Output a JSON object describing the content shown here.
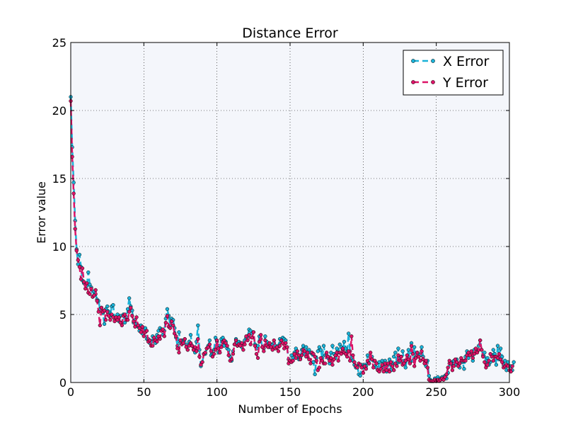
{
  "chart_data": {
    "type": "line",
    "title": "Distance Error",
    "xlabel": "Number of Epochs",
    "ylabel": "Error value",
    "xlim": [
      0,
      300
    ],
    "ylim": [
      0,
      25
    ],
    "xticks": [
      0,
      50,
      100,
      150,
      200,
      250,
      300
    ],
    "yticks": [
      0,
      5,
      10,
      15,
      20,
      25
    ],
    "grid": true,
    "legend": "top-right",
    "plot_background": "#f4f6fb",
    "series": [
      {
        "name": "X Error",
        "color": "#1ab2d8",
        "marker": "circle",
        "line_style": "dashed",
        "values": [
          21,
          17.3,
          14.7,
          11.9,
          9.8,
          8.7,
          9.4,
          8.5,
          7.5,
          7.3,
          7.2,
          7.1,
          8.1,
          7.2,
          7,
          6.3,
          6.7,
          6.5,
          6.1,
          6,
          5.4,
          5.5,
          5.1,
          4.3,
          5.4,
          5.6,
          5.2,
          4.9,
          5.6,
          5.7,
          4.7,
          4.8,
          5,
          4.5,
          4.9,
          4.4,
          5,
          4.4,
          4.8,
          5.4,
          6.2,
          5.6,
          5.3,
          4.4,
          4.6,
          4.3,
          4.1,
          3.8,
          4.2,
          3.6,
          3.9,
          4,
          3.2,
          3.2,
          2.9,
          3,
          3.4,
          3.1,
          2.9,
          3.5,
          3.8,
          4,
          3.9,
          3.5,
          3.8,
          4.7,
          5.4,
          4.9,
          4.2,
          4.7,
          4.6,
          4,
          3.3,
          2.7,
          3.7,
          2.9,
          3.1,
          3,
          3.2,
          2.8,
          2.4,
          3,
          3.5,
          2.7,
          2.4,
          2.2,
          3,
          4.2,
          2.4,
          1.2,
          1.5,
          2.1,
          2.1,
          2.5,
          2.7,
          3.1,
          2,
          2.1,
          2.4,
          3.3,
          3,
          2.2,
          2.7,
          3.2,
          3.3,
          2.7,
          3,
          2.5,
          2.4,
          1.9,
          1.6,
          2.3,
          2.8,
          3.2,
          2.7,
          3,
          2.9,
          2.6,
          2.8,
          3.1,
          3.3,
          3.4,
          3.9,
          3.8,
          3.6,
          3.7,
          2.8,
          2.5,
          2.7,
          3.4,
          3.2,
          2.6,
          2.5,
          3.4,
          3,
          2.8,
          2.6,
          2.7,
          2.8,
          2.9,
          2.7,
          2.6,
          2.7,
          3.2,
          3,
          3.3,
          3.2,
          3.1,
          2.6,
          1.7,
          1.6,
          2,
          1.8,
          2.2,
          2.5,
          2.1,
          1.7,
          1.8,
          2.4,
          2.7,
          2.1,
          2.6,
          1.9,
          2.4,
          2.2,
          2.1,
          1.5,
          0.6,
          1.8,
          2.3,
          2.6,
          2.4,
          1.8,
          2.7,
          2,
          2,
          1.8,
          1.4,
          2.2,
          2.7,
          2.1,
          1.8,
          2.5,
          2.2,
          2.8,
          2.6,
          2.4,
          3,
          2.5,
          2.2,
          3.6,
          2.3,
          1.7,
          1.6,
          1.3,
          1.1,
          1.2,
          0.6,
          0.5,
          1.3,
          1.1,
          1.3,
          1.2,
          2,
          1.4,
          1.8,
          1.9,
          1.6,
          1.2,
          1.1,
          0.9,
          1.5,
          1,
          1.6,
          1.1,
          1.6,
          0.8,
          1.3,
          1.7,
          0.9,
          1.3,
          1.9,
          2.2,
          1.4,
          2.5,
          1.5,
          1.9,
          2.3,
          1.6,
          1.1,
          1.7,
          2.4,
          1.5,
          2.9,
          1.6,
          2.6,
          1.9,
          2.2,
          2.1,
          2,
          2.6,
          1.9,
          1.4,
          1.2,
          1.6,
          0.5,
          0.2,
          0.1,
          0.1,
          0.3,
          0.1,
          0.4,
          0.2,
          0.3,
          0.4,
          0.2,
          0.5,
          0.3,
          0.7,
          1.4,
          1.5,
          1.2,
          1.6,
          1.3,
          1.7,
          1.4,
          1.1,
          1.6,
          1.5,
          1,
          1.9,
          2.3,
          1.8,
          2.1,
          2.2,
          1.6,
          2.4,
          2.2,
          2.3,
          2.7,
          3.1,
          2.4,
          2,
          2.2,
          1.4,
          1.8,
          1.3,
          1.5,
          2,
          2.4,
          2.1,
          1.3,
          2.7,
          1.7,
          2.5,
          1.9,
          1.3,
          1.6,
          0.9,
          1.5,
          1.2,
          1.2,
          0.9,
          1.5
        ]
      },
      {
        "name": "Y Error",
        "color": "#dc1367",
        "marker": "circle",
        "line_style": "dashed",
        "values": [
          20.7,
          16.6,
          13.9,
          11.3,
          9.7,
          9,
          8.5,
          7.6,
          8.4,
          7.4,
          6.9,
          7.3,
          6.6,
          6.5,
          6.9,
          6.3,
          6.4,
          6.8,
          6,
          5.2,
          4.2,
          5.5,
          5.2,
          5.3,
          4.6,
          5.2,
          4.9,
          4.6,
          5,
          4.8,
          4.5,
          4.8,
          4.6,
          4.8,
          4.4,
          4.2,
          4.9,
          5,
          4.6,
          4.6,
          5.2,
          5.5,
          4.9,
          4.5,
          4.1,
          4.8,
          4.2,
          4,
          3.7,
          4.1,
          3.4,
          3.7,
          3.8,
          3,
          3.1,
          2.7,
          2.7,
          3.3,
          3.1,
          3,
          3.4,
          3.2,
          3.8,
          3.9,
          3.4,
          4.4,
          4.9,
          4.1,
          4,
          4.5,
          4.2,
          3.6,
          3.4,
          2.5,
          2.2,
          3.1,
          2.8,
          2.9,
          3.2,
          2.6,
          2.4,
          2.7,
          2.9,
          2.7,
          2.4,
          2.6,
          2.3,
          3.2,
          1.9,
          1.3,
          1.5,
          2.1,
          2.2,
          2.5,
          2.6,
          2.8,
          2.3,
          1.9,
          2.1,
          2.4,
          3.1,
          2.5,
          2.2,
          2.6,
          3,
          3.1,
          2.9,
          2.7,
          2,
          1.6,
          1.7,
          2.1,
          2.8,
          3.1,
          2.7,
          2.8,
          2.7,
          2.9,
          2.4,
          2.8,
          3.4,
          3.1,
          3.5,
          2.8,
          3.3,
          3.7,
          2.7,
          2.1,
          1.8,
          3,
          3.5,
          2.6,
          2.3,
          3.1,
          2.7,
          2.6,
          2.9,
          2.6,
          2.4,
          3.1,
          2.5,
          2.6,
          2.3,
          2.7,
          3.1,
          2.9,
          2.5,
          2.9,
          2.6,
          1.4,
          1.6,
          1.5,
          1.6,
          2.1,
          1.8,
          2.3,
          2,
          1.7,
          2,
          2.4,
          2.3,
          1.9,
          2.2,
          1.7,
          1.4,
          2.2,
          2.1,
          1.9,
          1.6,
          0.9,
          1.1,
          1.8,
          1.6,
          1.4,
          1.4,
          2.2,
          1.9,
          1.6,
          1.8,
          1.3,
          1.7,
          2,
          2.2,
          1.6,
          2.2,
          2.1,
          2.5,
          2.2,
          2.1,
          1.9,
          2.3,
          1.6,
          3.4,
          2,
          1.5,
          1.2,
          1.1,
          1.4,
          1.3,
          1.1,
          0.7,
          1.2,
          1,
          1.6,
          1.4,
          2.2,
          1.7,
          1.1,
          1.6,
          1.4,
          0.9,
          0.8,
          1,
          1.3,
          0.8,
          1.4,
          0.9,
          1.4,
          0.8,
          1.5,
          1.2,
          0.9,
          1.4,
          1.2,
          2,
          1.6,
          1.9,
          1.3,
          1.4,
          1.6,
          2,
          1.7,
          1.4,
          2.7,
          2.1,
          1.2,
          1.8,
          2.2,
          1.9,
          1.6,
          2.3,
          1.7,
          1.4,
          1.6,
          1.1,
          0.2,
          0.1,
          0.1,
          0.1,
          0.2,
          0.1,
          0.2,
          0.1,
          0.2,
          0.3,
          0.2,
          0.4,
          0.6,
          1.1,
          1.6,
          1.4,
          0.9,
          1.2,
          1.7,
          1.5,
          1.2,
          1.4,
          1.8,
          1.6,
          1.6,
          1.6,
          2,
          2.2,
          2,
          2.3,
          1.8,
          2.1,
          2.5,
          2.2,
          2.4,
          3.1,
          2.4,
          1.9,
          1.5,
          1.1,
          1.3,
          1.6,
          2.1,
          1.9,
          1.6,
          1.9,
          1.9,
          1.8,
          2.1,
          1.7,
          1.5,
          1.1,
          1.2,
          1.3,
          1.2,
          0.9,
          0.8,
          1.2
        ]
      }
    ]
  }
}
